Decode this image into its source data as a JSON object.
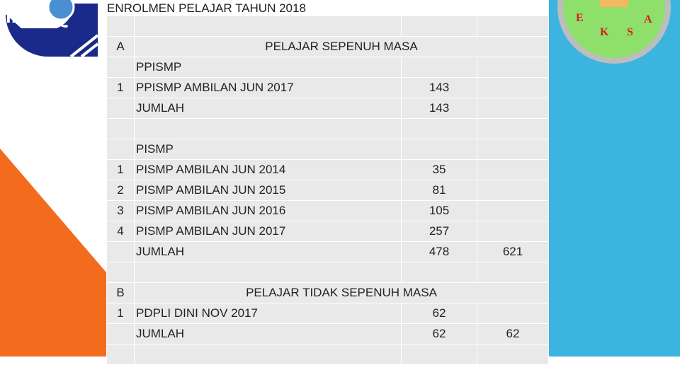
{
  "title": "ENROLMEN PELAJAR TAHUN 2018",
  "logos": {
    "left": "IPG",
    "right": "EKSA"
  },
  "rows": [
    {
      "n": "",
      "label": "",
      "value": "",
      "total": ""
    },
    {
      "n": "A",
      "header": "PELAJAR SEPENUH MASA"
    },
    {
      "n": "",
      "label": "PPISMP",
      "value": "",
      "total": ""
    },
    {
      "n": "1",
      "label": "PPISMP AMBILAN JUN 2017",
      "value": "143",
      "total": ""
    },
    {
      "n": "",
      "label": "JUMLAH",
      "value": "143",
      "total": ""
    },
    {
      "n": "",
      "label": "",
      "value": "",
      "total": ""
    },
    {
      "n": "",
      "label": "PISMP",
      "value": "",
      "total": ""
    },
    {
      "n": "1",
      "label": "PISMP AMBILAN JUN 2014",
      "value": "35",
      "total": ""
    },
    {
      "n": "2",
      "label": "PISMP AMBILAN JUN 2015",
      "value": "81",
      "total": ""
    },
    {
      "n": "3",
      "label": "PISMP AMBILAN JUN 2016",
      "value": "105",
      "total": ""
    },
    {
      "n": "4",
      "label": "PISMP AMBILAN JUN 2017",
      "value": "257",
      "total": ""
    },
    {
      "n": "",
      "label": "JUMLAH",
      "value": "478",
      "total": "621"
    },
    {
      "n": "",
      "label": "",
      "value": "",
      "total": ""
    },
    {
      "n": "B",
      "header": "PELAJAR TIDAK SEPENUH MASA"
    },
    {
      "n": "1",
      "label": "PDPLI DINI NOV 2017",
      "value": "62",
      "total": ""
    },
    {
      "n": "",
      "label": "JUMLAH",
      "value": "62",
      "total": "62"
    },
    {
      "n": "",
      "label": "",
      "value": "",
      "total": ""
    }
  ]
}
